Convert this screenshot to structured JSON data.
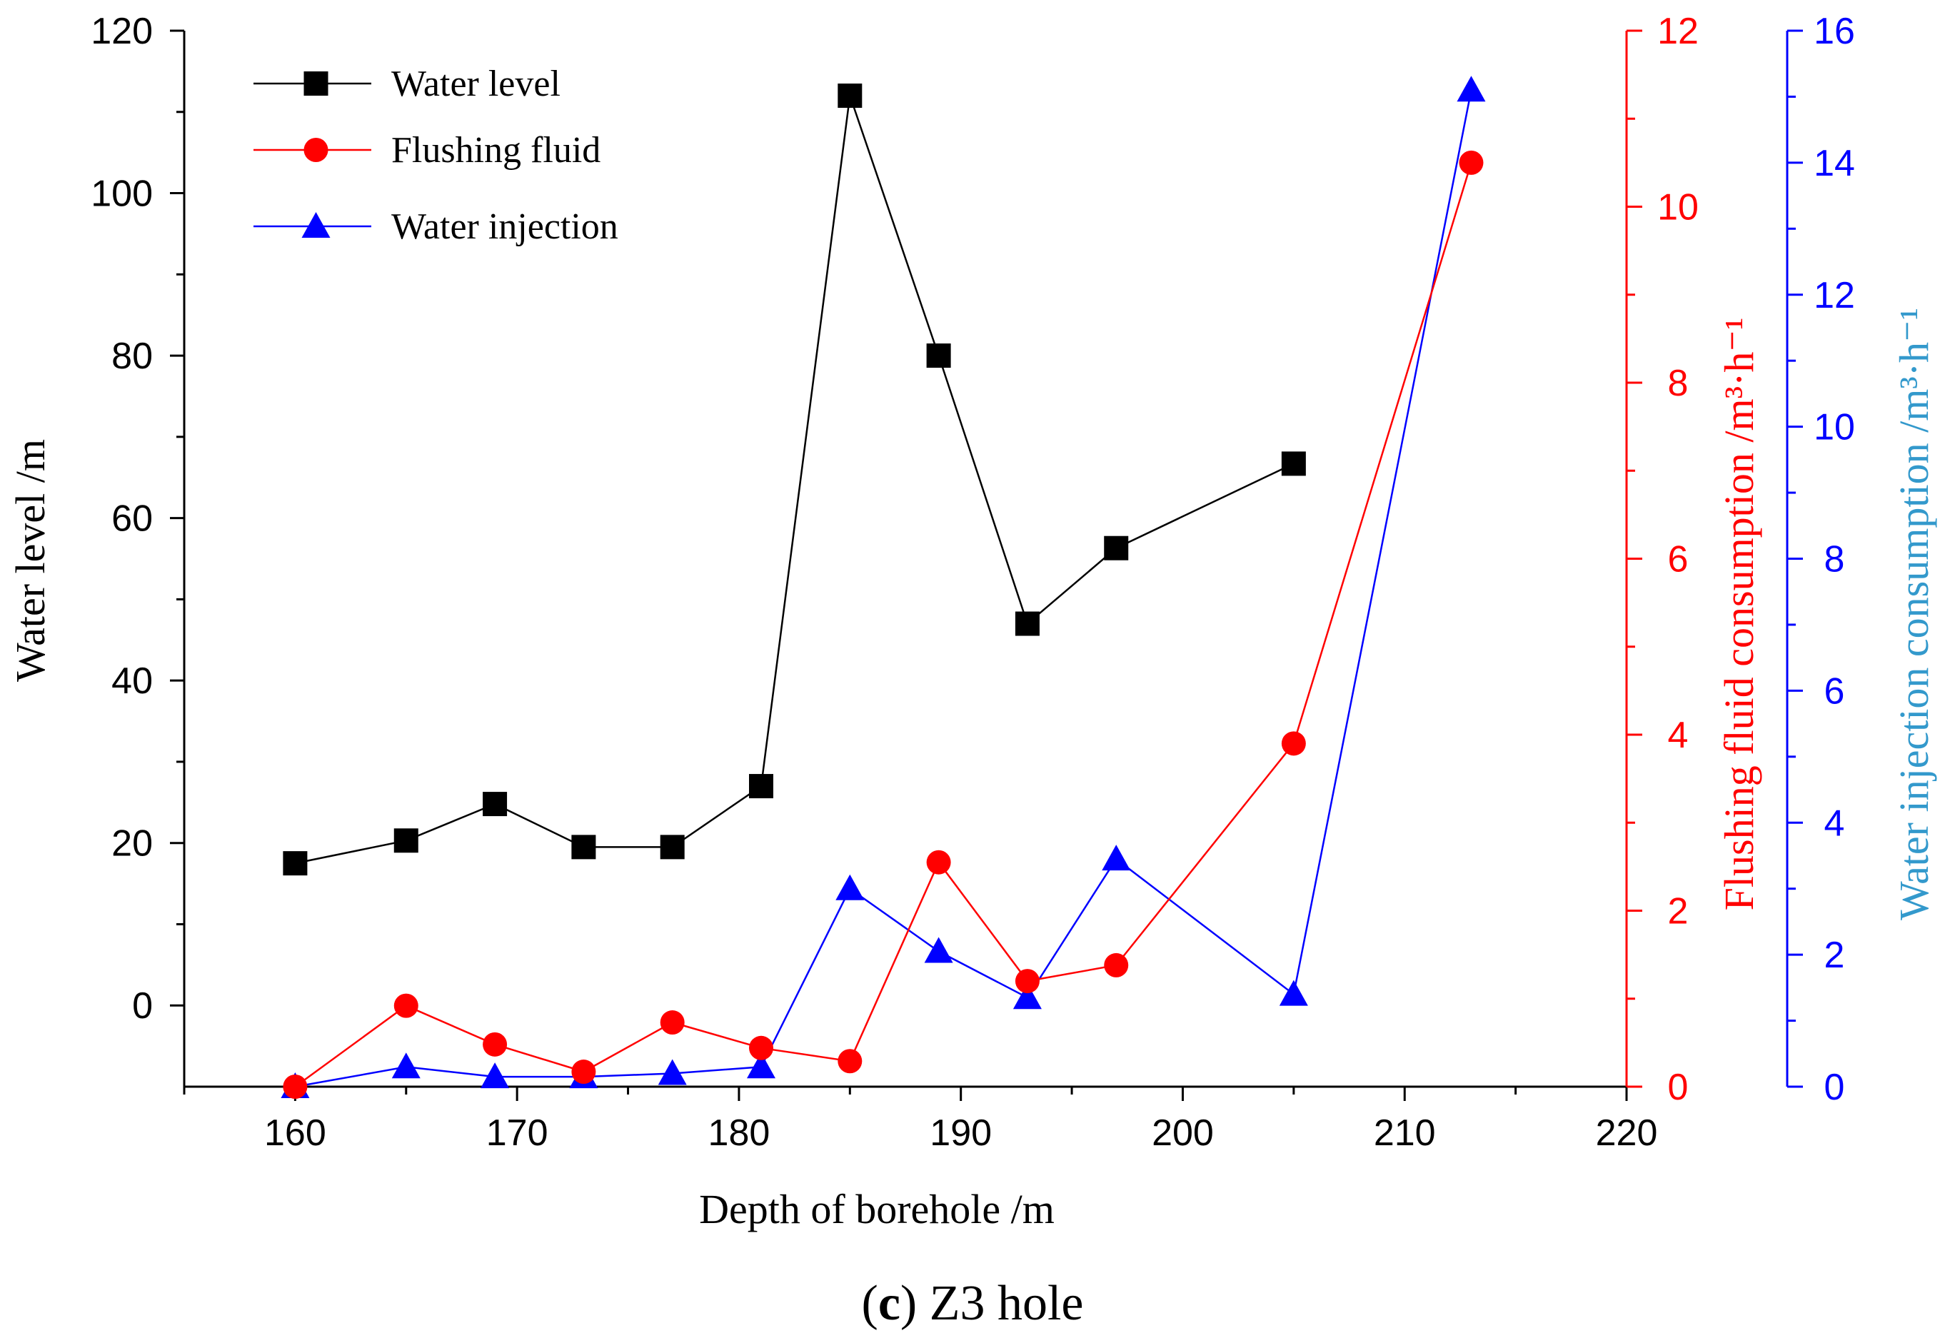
{
  "chart_data": {
    "type": "line",
    "title": "",
    "caption": {
      "label": "c",
      "text": "Z3 hole"
    },
    "xlabel": "Depth of borehole /m",
    "xlim": [
      155,
      220
    ],
    "xticks": [
      160,
      170,
      180,
      190,
      200,
      210,
      220
    ],
    "axes": {
      "left": {
        "label": "Water level /m",
        "color": "#000000",
        "lim": [
          -10,
          120
        ],
        "ticks": [
          0,
          20,
          40,
          60,
          80,
          100,
          120
        ]
      },
      "right1": {
        "label": "Flushing fluid consumption /m³·h⁻¹",
        "color": "#ff0000",
        "lim": [
          0,
          12
        ],
        "ticks": [
          0,
          2,
          4,
          6,
          8,
          10,
          12
        ]
      },
      "right2": {
        "label": "Water injection consumption /m³·h⁻¹",
        "color": "#0000ff",
        "lim": [
          0,
          16
        ],
        "ticks": [
          0,
          2,
          4,
          6,
          8,
          10,
          12,
          14,
          16
        ]
      }
    },
    "legend_position": "top-left",
    "series": [
      {
        "name": "Water level",
        "axis": "left",
        "color": "#000000",
        "marker": "square",
        "x": [
          160,
          165,
          169,
          173,
          177,
          181,
          185,
          189,
          193,
          197,
          205
        ],
        "y": [
          17.5,
          20.3,
          24.8,
          19.5,
          19.5,
          27,
          112,
          80,
          47,
          56.3,
          66.7
        ]
      },
      {
        "name": "Flushing fluid",
        "axis": "right1",
        "color": "#ff0000",
        "marker": "circle",
        "x": [
          160,
          165,
          169,
          173,
          177,
          181,
          185,
          189,
          193,
          197,
          205,
          213
        ],
        "y": [
          0.0,
          0.92,
          0.48,
          0.17,
          0.73,
          0.44,
          0.29,
          2.55,
          1.2,
          1.38,
          3.9,
          10.5
        ]
      },
      {
        "name": "Water injection",
        "axis": "right2",
        "color": "#0000ff",
        "marker": "triangle",
        "x": [
          160,
          165,
          169,
          173,
          177,
          181,
          185,
          189,
          193,
          197,
          205,
          213
        ],
        "y": [
          0.0,
          0.3,
          0.15,
          0.15,
          0.2,
          0.3,
          3.0,
          2.05,
          1.35,
          3.45,
          1.4,
          15.1
        ]
      }
    ]
  }
}
